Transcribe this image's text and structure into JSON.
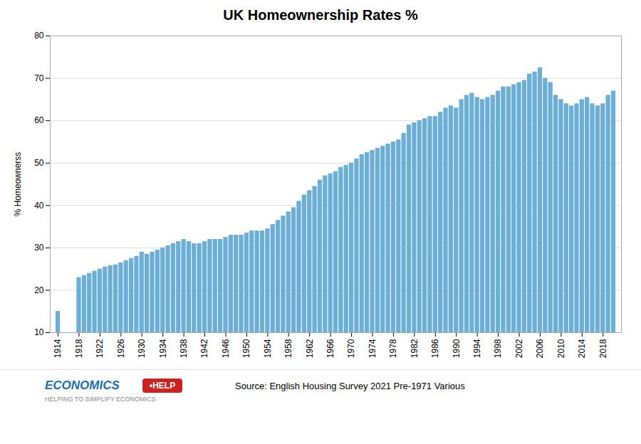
{
  "chart_data": {
    "type": "bar",
    "title": "UK Homeownership Rates %",
    "ylabel": "% Homeownerss",
    "x": [
      1914,
      1918,
      1919,
      1920,
      1921,
      1922,
      1923,
      1924,
      1925,
      1926,
      1927,
      1928,
      1929,
      1930,
      1931,
      1932,
      1933,
      1934,
      1935,
      1936,
      1937,
      1938,
      1939,
      1940,
      1941,
      1942,
      1943,
      1944,
      1945,
      1946,
      1947,
      1948,
      1949,
      1950,
      1951,
      1952,
      1953,
      1954,
      1955,
      1956,
      1957,
      1958,
      1959,
      1960,
      1961,
      1962,
      1963,
      1964,
      1965,
      1966,
      1967,
      1968,
      1969,
      1970,
      1971,
      1972,
      1973,
      1974,
      1975,
      1976,
      1977,
      1978,
      1979,
      1980,
      1981,
      1982,
      1983,
      1984,
      1985,
      1986,
      1987,
      1988,
      1989,
      1990,
      1991,
      1992,
      1993,
      1994,
      1995,
      1996,
      1997,
      1998,
      1999,
      2000,
      2001,
      2002,
      2003,
      2004,
      2005,
      2006,
      2007,
      2008,
      2009,
      2010,
      2011,
      2012,
      2013,
      2014,
      2015,
      2016,
      2017,
      2018,
      2019,
      2020
    ],
    "values": [
      15,
      23,
      23.5,
      24,
      24.5,
      25,
      25.5,
      25.8,
      26,
      26.5,
      27,
      27.5,
      28,
      29,
      28.5,
      29,
      29.5,
      30,
      30.5,
      31,
      31.5,
      32,
      31.5,
      31,
      31,
      31.5,
      32,
      32,
      32,
      32.5,
      33,
      33,
      33,
      33.5,
      34,
      34,
      34,
      34.5,
      35.5,
      36.5,
      37.5,
      38.5,
      39.5,
      41,
      42.5,
      43.5,
      44.5,
      46,
      47,
      47.5,
      48,
      49,
      49.5,
      50,
      51,
      52,
      52.5,
      53,
      53.5,
      54,
      54.5,
      55,
      55.5,
      57,
      59,
      59.5,
      60,
      60.5,
      61,
      61,
      62,
      63,
      63.5,
      63,
      65,
      66,
      66.5,
      65.5,
      65,
      65.5,
      66,
      67,
      68,
      68,
      68.5,
      69,
      69.5,
      71,
      71.5,
      72.5,
      70,
      69,
      66,
      65,
      64,
      63.5,
      64,
      65,
      65.5,
      64,
      63.5,
      64,
      66,
      67
    ],
    "color": "#6baed6",
    "xlim": [
      1912.5,
      2021.5
    ],
    "xticks": [
      1914,
      1918,
      1922,
      1926,
      1930,
      1934,
      1938,
      1942,
      1946,
      1950,
      1954,
      1958,
      1962,
      1966,
      1970,
      1974,
      1978,
      1982,
      1986,
      1990,
      1994,
      1998,
      2002,
      2006,
      2010,
      2014,
      2018
    ],
    "ylim": [
      10,
      80
    ],
    "yticks": [
      10,
      20,
      30,
      40,
      50,
      60,
      70,
      80
    ],
    "grid": true,
    "annotations": [
      "ECONOMICS",
      "•HELP",
      "HELPING TO SIMPLIFY ECONOMICS",
      "Source: English Housing Survey 2021 Pre-1971 Various"
    ]
  }
}
